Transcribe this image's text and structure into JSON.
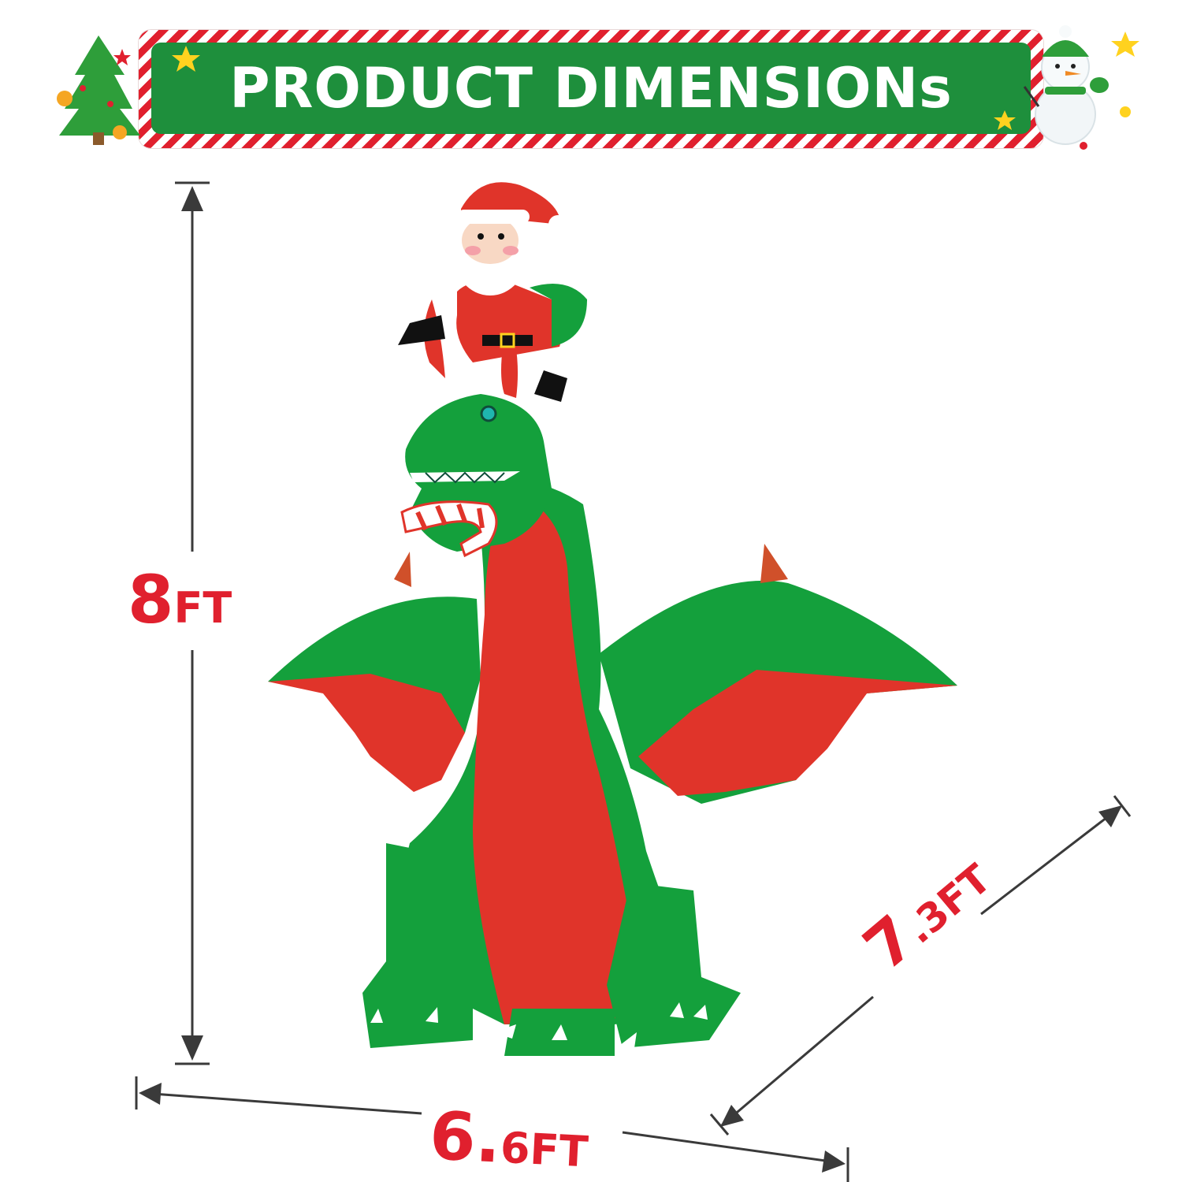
{
  "banner": {
    "title": "PRODUCT DIMENSIONs"
  },
  "dimensions": {
    "height": {
      "value": "8",
      "unit": "FT"
    },
    "width": {
      "value": "6.",
      "value_tail": "6FT"
    },
    "depth": {
      "value": "7",
      "value_tail": ".3FT"
    }
  },
  "product": {
    "figure": "santa-riding-dragon-inflatable-icon"
  },
  "colors": {
    "banner_green": "#1e8f3c",
    "stripe_red": "#e0202e",
    "dragon_green": "#14a03c",
    "dragon_red": "#e0342a",
    "label_red": "#e0202e",
    "arrow_gray": "#3a3a3a"
  }
}
